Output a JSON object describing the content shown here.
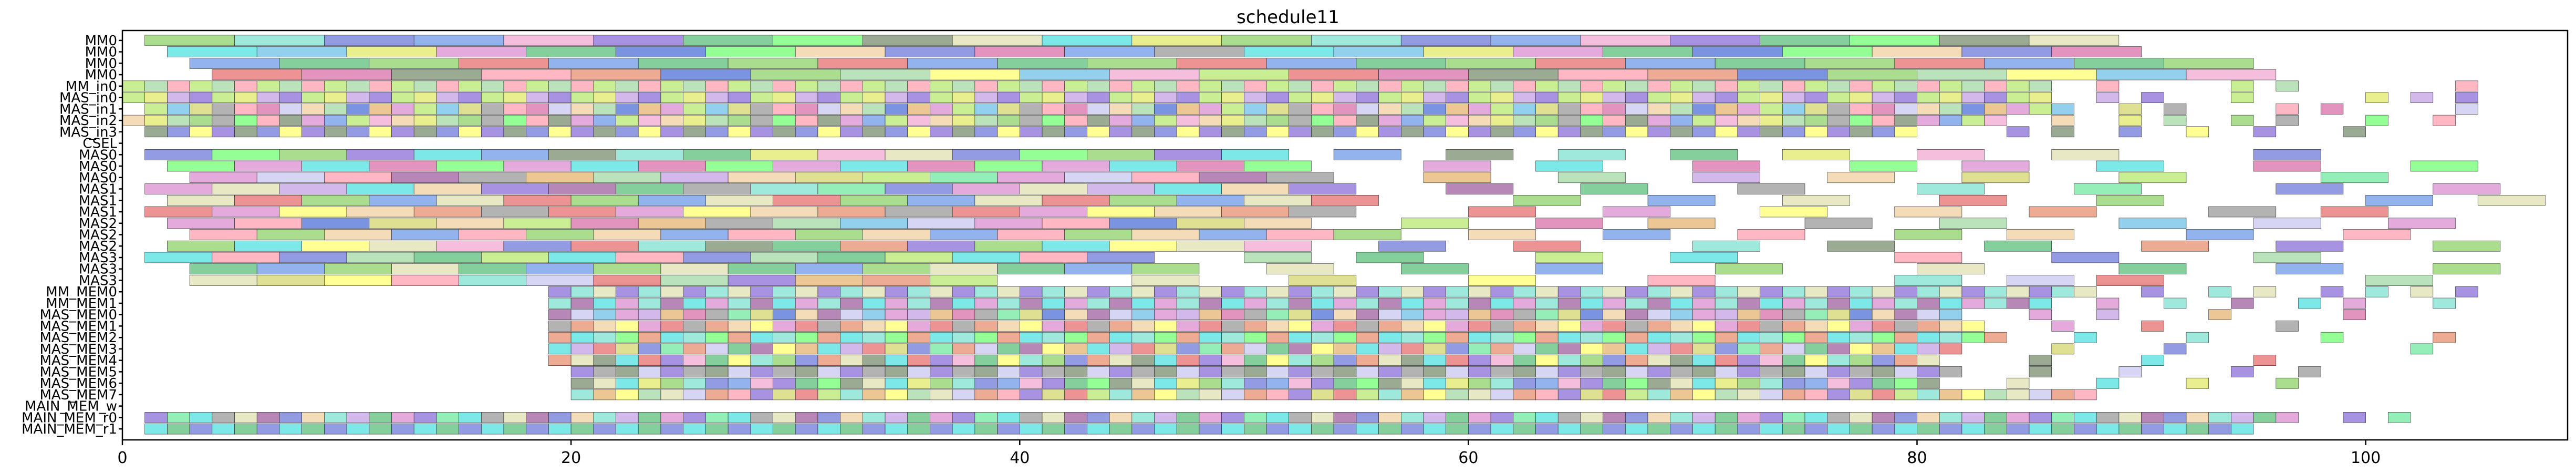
{
  "chart_data": {
    "type": "gantt",
    "title": "schedule11",
    "xlabel": "",
    "ylabel": "",
    "xlim": [
      0,
      109
    ],
    "xticks": [
      0,
      20,
      40,
      60,
      80,
      100
    ],
    "grid": false,
    "rows": [
      "MM0",
      "MM0",
      "MM0",
      "MM0",
      "MM_in0",
      "MAS_in0",
      "MAS_in1",
      "MAS_in2",
      "MAS_in3",
      "CSEL",
      "MAS0",
      "MAS0",
      "MAS0",
      "MAS1",
      "MAS1",
      "MAS1",
      "MAS2",
      "MAS2",
      "MAS2",
      "MAS3",
      "MAS3",
      "MAS3",
      "MM_MEM0",
      "MM_MEM1",
      "MAS_MEM0",
      "MAS_MEM1",
      "MAS_MEM2",
      "MAS_MEM3",
      "MAS_MEM4",
      "MAS_MEM5",
      "MAS_MEM6",
      "MAS_MEM7",
      "MAIN_MEM_w",
      "MAIN_MEM_r0",
      "MAIN_MEM_r1"
    ],
    "palette": [
      "#8fd16a",
      "#d98ecf",
      "#6f7bd8",
      "#e6b36f",
      "#7fe0d0",
      "#c4a0e6",
      "#e86f6f",
      "#a3d9a5",
      "#e2e86a",
      "#6fc0e8",
      "#f2a8d0",
      "#9a9a9a",
      "#5bbf7a",
      "#d6d66f",
      "#8a6fd8",
      "#6fe8a0",
      "#e88f6f",
      "#b8e86f",
      "#6f9ae8",
      "#d86fa8",
      "#7a8f6f",
      "#f0d0a0",
      "#50e0e0",
      "#c8c8f0",
      "#e0e0b0",
      "#9f5fa0",
      "#ffff70",
      "#ff9fb0",
      "#70ff70",
      "#4f70d8"
    ],
    "rowspecs": [
      {
        "start": 1,
        "end": 91,
        "dur": 4,
        "offset": 0
      },
      {
        "start": 2,
        "end": 93,
        "dur": 4,
        "offset": 2
      },
      {
        "start": 3,
        "end": 97,
        "dur": 4,
        "offset": 1
      },
      {
        "start": 4,
        "end": 97,
        "dur": 4,
        "offset": 3
      },
      {
        "start": 0,
        "end": 86,
        "dur": 1,
        "offset": 0,
        "sparse": [
          [
            88,
            1
          ],
          [
            94,
            1
          ],
          [
            96,
            1
          ],
          [
            104,
            1
          ]
        ]
      },
      {
        "start": 0,
        "end": 86,
        "dur": 1,
        "offset": 0,
        "sparse": [
          [
            88,
            1
          ],
          [
            90,
            1
          ],
          [
            94,
            1
          ],
          [
            100,
            1
          ],
          [
            102,
            1
          ],
          [
            104,
            1
          ]
        ]
      },
      {
        "start": 1,
        "end": 87,
        "dur": 1,
        "offset": 0,
        "sparse": [
          [
            89,
            1
          ],
          [
            91,
            1
          ],
          [
            96,
            1
          ],
          [
            98,
            1
          ],
          [
            104,
            1
          ]
        ]
      },
      {
        "start": 0,
        "end": 84,
        "dur": 1,
        "offset": 0,
        "sparse": [
          [
            86,
            1
          ],
          [
            89,
            1
          ],
          [
            91,
            1
          ],
          [
            94,
            1
          ],
          [
            96,
            1
          ],
          [
            100,
            1
          ],
          [
            103,
            1
          ]
        ]
      },
      {
        "start": 1,
        "end": 80,
        "dur": 1,
        "offset": 0,
        "sparse": [
          [
            84,
            1
          ],
          [
            86,
            1
          ],
          [
            89,
            1
          ],
          [
            92,
            1
          ],
          [
            95,
            1
          ],
          [
            99,
            1
          ]
        ]
      },
      {
        "start": 0,
        "end": 0,
        "dur": 1,
        "offset": 0
      },
      {
        "start": 1,
        "end": 52,
        "dur": 3,
        "offset": 0,
        "sparse": [
          [
            54,
            3
          ],
          [
            59,
            3
          ],
          [
            64,
            3
          ],
          [
            69,
            3
          ],
          [
            74,
            3
          ],
          [
            80,
            3
          ],
          [
            86,
            3
          ],
          [
            95,
            3
          ]
        ]
      },
      {
        "start": 2,
        "end": 55,
        "dur": 3,
        "offset": 1,
        "sparse": [
          [
            58,
            3
          ],
          [
            63,
            3
          ],
          [
            70,
            3
          ],
          [
            77,
            3
          ],
          [
            82,
            3
          ],
          [
            88,
            3
          ],
          [
            95,
            3
          ],
          [
            102,
            3
          ]
        ]
      },
      {
        "start": 3,
        "end": 55,
        "dur": 3,
        "offset": 2,
        "sparse": [
          [
            58,
            3
          ],
          [
            64,
            3
          ],
          [
            70,
            3
          ],
          [
            76,
            3
          ],
          [
            82,
            3
          ],
          [
            89,
            3
          ],
          [
            98,
            3
          ]
        ]
      },
      {
        "start": 1,
        "end": 56,
        "dur": 3,
        "offset": 0,
        "sparse": [
          [
            59,
            3
          ],
          [
            65,
            3
          ],
          [
            72,
            3
          ],
          [
            80,
            3
          ],
          [
            87,
            3
          ],
          [
            96,
            3
          ],
          [
            103,
            3
          ]
        ]
      },
      {
        "start": 2,
        "end": 58,
        "dur": 3,
        "offset": 1,
        "sparse": [
          [
            62,
            3
          ],
          [
            68,
            3
          ],
          [
            74,
            3
          ],
          [
            81,
            3
          ],
          [
            88,
            3
          ],
          [
            100,
            3
          ],
          [
            105,
            3
          ]
        ]
      },
      {
        "start": 1,
        "end": 57,
        "dur": 3,
        "offset": 2,
        "sparse": [
          [
            60,
            3
          ],
          [
            66,
            3
          ],
          [
            73,
            3
          ],
          [
            79,
            3
          ],
          [
            85,
            3
          ],
          [
            93,
            3
          ],
          [
            98,
            3
          ]
        ]
      },
      {
        "start": 2,
        "end": 54,
        "dur": 3,
        "offset": 0,
        "sparse": [
          [
            57,
            3
          ],
          [
            63,
            3
          ],
          [
            68,
            3
          ],
          [
            75,
            3
          ],
          [
            81,
            3
          ],
          [
            89,
            3
          ],
          [
            95,
            3
          ],
          [
            101,
            3
          ]
        ]
      },
      {
        "start": 3,
        "end": 57,
        "dur": 3,
        "offset": 1,
        "sparse": [
          [
            60,
            3
          ],
          [
            66,
            3
          ],
          [
            72,
            3
          ],
          [
            79,
            3
          ],
          [
            84,
            3
          ],
          [
            92,
            3
          ],
          [
            99,
            3
          ]
        ]
      },
      {
        "start": 2,
        "end": 53,
        "dur": 3,
        "offset": 2,
        "sparse": [
          [
            56,
            3
          ],
          [
            62,
            3
          ],
          [
            70,
            3
          ],
          [
            76,
            3
          ],
          [
            83,
            3
          ],
          [
            90,
            3
          ],
          [
            96,
            3
          ],
          [
            103,
            3
          ]
        ]
      },
      {
        "start": 1,
        "end": 47,
        "dur": 3,
        "offset": 0,
        "sparse": [
          [
            50,
            3
          ],
          [
            55,
            3
          ],
          [
            63,
            3
          ],
          [
            69,
            3
          ],
          [
            79,
            3
          ],
          [
            86,
            3
          ],
          [
            95,
            3
          ]
        ]
      },
      {
        "start": 3,
        "end": 48,
        "dur": 3,
        "offset": 1,
        "sparse": [
          [
            51,
            3
          ],
          [
            57,
            3
          ],
          [
            63,
            3
          ],
          [
            71,
            3
          ],
          [
            80,
            3
          ],
          [
            89,
            3
          ],
          [
            96,
            3
          ],
          [
            103,
            3
          ]
        ]
      },
      {
        "start": 3,
        "end": 40,
        "dur": 3,
        "offset": 2,
        "sparse": [
          [
            45,
            3
          ],
          [
            52,
            3
          ],
          [
            60,
            3
          ],
          [
            68,
            3
          ],
          [
            79,
            3
          ],
          [
            84,
            3
          ],
          [
            88,
            3
          ],
          [
            100,
            3
          ]
        ]
      },
      {
        "start": 19,
        "end": 88,
        "dur": 1,
        "offset": 0,
        "sparse": [
          [
            90,
            1
          ],
          [
            93,
            1
          ],
          [
            95,
            1
          ],
          [
            98,
            1
          ],
          [
            100,
            1
          ],
          [
            102,
            1
          ],
          [
            104,
            1
          ]
        ]
      },
      {
        "start": 19,
        "end": 86,
        "dur": 1,
        "offset": 0,
        "sparse": [
          [
            88,
            1
          ],
          [
            91,
            1
          ],
          [
            94,
            1
          ],
          [
            97,
            1
          ],
          [
            99,
            1
          ],
          [
            103,
            1
          ]
        ]
      },
      {
        "start": 19,
        "end": 82,
        "dur": 1,
        "offset": 0,
        "sparse": [
          [
            85,
            1
          ],
          [
            88,
            1
          ],
          [
            93,
            1
          ],
          [
            99,
            1
          ]
        ]
      },
      {
        "start": 19,
        "end": 83,
        "dur": 1,
        "offset": 0,
        "sparse": [
          [
            86,
            1
          ],
          [
            90,
            1
          ],
          [
            96,
            1
          ]
        ]
      },
      {
        "start": 19,
        "end": 84,
        "dur": 1,
        "offset": 0,
        "sparse": [
          [
            87,
            1
          ],
          [
            92,
            1
          ],
          [
            98,
            1
          ],
          [
            103,
            1
          ]
        ]
      },
      {
        "start": 19,
        "end": 82,
        "dur": 1,
        "offset": 0,
        "sparse": [
          [
            86,
            1
          ],
          [
            91,
            1
          ],
          [
            102,
            1
          ]
        ]
      },
      {
        "start": 19,
        "end": 81,
        "dur": 1,
        "offset": 0,
        "sparse": [
          [
            85,
            1
          ],
          [
            90,
            1
          ],
          [
            95,
            1
          ]
        ]
      },
      {
        "start": 20,
        "end": 82,
        "dur": 1,
        "offset": 0,
        "sparse": [
          [
            85,
            1
          ],
          [
            89,
            1
          ],
          [
            94,
            1
          ],
          [
            97,
            1
          ]
        ]
      },
      {
        "start": 20,
        "end": 81,
        "dur": 1,
        "offset": 0,
        "sparse": [
          [
            84,
            1
          ],
          [
            88,
            1
          ],
          [
            92,
            1
          ],
          [
            96,
            1
          ]
        ]
      },
      {
        "start": 20,
        "end": 88,
        "dur": 1,
        "offset": 0
      },
      {
        "start": 0,
        "end": 0,
        "dur": 1,
        "offset": 0
      },
      {
        "start": 1,
        "end": 97,
        "dur": 1,
        "offset": 0,
        "sparse": [
          [
            99,
            1
          ],
          [
            101,
            1
          ]
        ]
      },
      {
        "start": 1,
        "end": 95,
        "dur": 1,
        "offset": 0
      }
    ]
  }
}
